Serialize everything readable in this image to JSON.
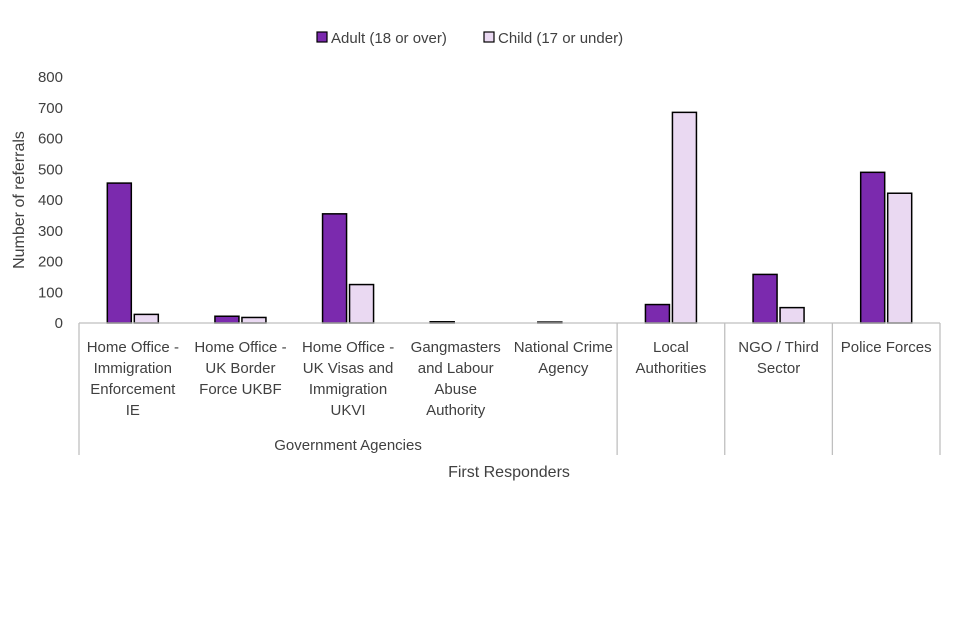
{
  "chart_data": {
    "type": "bar",
    "categories": [
      [
        "Home Office -",
        "Immigration",
        "Enforcement",
        "IE"
      ],
      [
        "Home Office -",
        "UK Border",
        "Force UKBF"
      ],
      [
        "Home Office -",
        "UK Visas and",
        "Immigration",
        "UKVI"
      ],
      [
        "Gangmasters",
        "and Labour",
        "Abuse",
        "Authority"
      ],
      [
        "National Crime",
        "Agency"
      ],
      [
        "Local",
        "Authorities"
      ],
      [
        "NGO / Third",
        "Sector"
      ],
      [
        "Police Forces"
      ]
    ],
    "groups": [
      {
        "label": "Government Agencies",
        "span": [
          0,
          4
        ]
      },
      {
        "label": "",
        "span": [
          5,
          5
        ]
      },
      {
        "label": "",
        "span": [
          6,
          6
        ]
      },
      {
        "label": "",
        "span": [
          7,
          7
        ]
      }
    ],
    "series": [
      {
        "name": "Adult (18 or over)",
        "color": "#7B2AAE",
        "values": [
          455,
          22,
          355,
          4,
          3,
          60,
          158,
          490
        ]
      },
      {
        "name": "Child (17 or under)",
        "color": "#EAD9F2",
        "values": [
          28,
          18,
          125,
          0,
          0,
          685,
          50,
          422
        ]
      }
    ],
    "title": "",
    "xlabel": "First Responders",
    "ylabel": "Number of referrals",
    "ylim": [
      0,
      800
    ],
    "yticks": [
      0,
      100,
      200,
      300,
      400,
      500,
      600,
      700,
      800
    ],
    "grid": false,
    "legend_position": "top"
  }
}
